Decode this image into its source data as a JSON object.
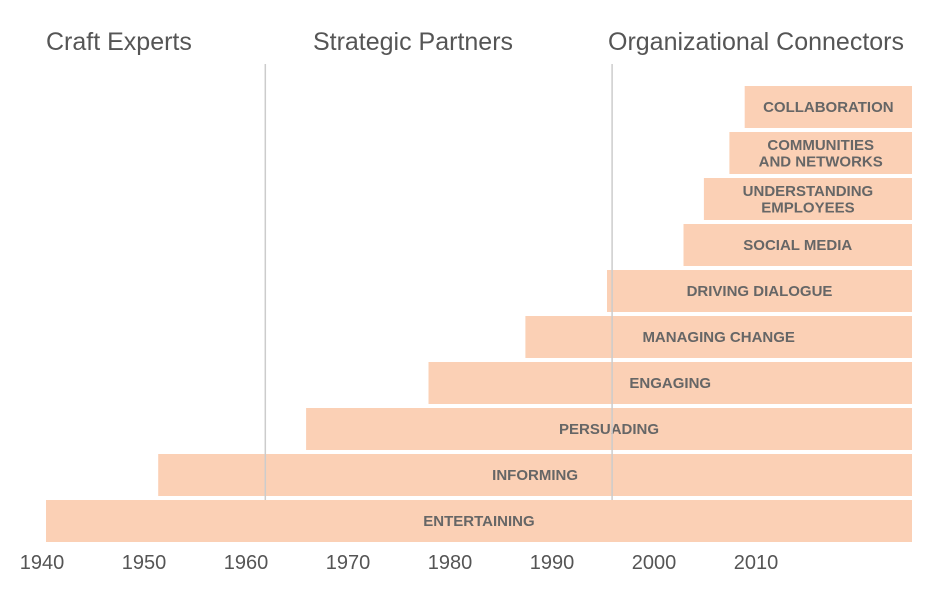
{
  "chart_data": {
    "type": "bar",
    "orientation": "horizontal",
    "bar_color": "#fbd0b5",
    "divider_color": "#cccccc",
    "eras": [
      "Craft Experts",
      "Strategic Partners",
      "Organizational Connectors"
    ],
    "era_dividers": [
      1961.5,
      1995.5
    ],
    "x_ticks": [
      "1940",
      "1950",
      "1960",
      "1970",
      "1980",
      "1990",
      "2000",
      "2010"
    ],
    "xlim": [
      1940,
      2026
    ],
    "bars": [
      {
        "label": [
          "ENTERTAINING"
        ],
        "start": 1940
      },
      {
        "label": [
          "INFORMING"
        ],
        "start": 1951
      },
      {
        "label": [
          "PERSUADING"
        ],
        "start": 1965.5
      },
      {
        "label": [
          "ENGAGING"
        ],
        "start": 1977.5
      },
      {
        "label": [
          "MANAGING CHANGE"
        ],
        "start": 1987
      },
      {
        "label": [
          "DRIVING DIALOGUE"
        ],
        "start": 1995
      },
      {
        "label": [
          "SOCIAL MEDIA"
        ],
        "start": 2002.5
      },
      {
        "label": [
          "UNDERSTANDING",
          "EMPLOYEES"
        ],
        "start": 2004.5
      },
      {
        "label": [
          "COMMUNITIES",
          "AND NETWORKS"
        ],
        "start": 2007
      },
      {
        "label": [
          "COLLABORATION"
        ],
        "start": 2008.5
      }
    ]
  }
}
